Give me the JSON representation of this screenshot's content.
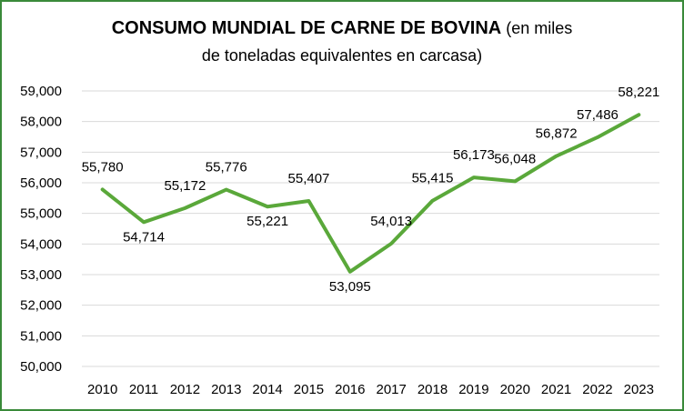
{
  "chart_data": {
    "type": "line",
    "title_bold": "CONSUMO MUNDIAL DE CARNE DE BOVINA",
    "title_rest_line1": "(en miles",
    "title_line2": "de toneladas equivalentes en carcasa)",
    "categories": [
      "2010",
      "2011",
      "2012",
      "2013",
      "2014",
      "2015",
      "2016",
      "2017",
      "2018",
      "2019",
      "2020",
      "2021",
      "2022",
      "2023"
    ],
    "series": [
      {
        "values": [
          55780,
          54714,
          55172,
          55776,
          55221,
          55407,
          53095,
          54013,
          55415,
          56173,
          56048,
          56872,
          57486,
          58221
        ],
        "labels": [
          "55,780",
          "54,714",
          "55,172",
          "55,776",
          "55,221",
          "55,407",
          "53,095",
          "54,013",
          "55,415",
          "56,173",
          "56,048",
          "56,872",
          "57,486",
          "58,221"
        ],
        "color": "#5aa83a"
      }
    ],
    "ylim": [
      50000,
      59000
    ],
    "yticks": [
      "50,000",
      "51,000",
      "52,000",
      "53,000",
      "54,000",
      "55,000",
      "56,000",
      "57,000",
      "58,000",
      "59,000"
    ],
    "ytick_values": [
      50000,
      51000,
      52000,
      53000,
      54000,
      55000,
      56000,
      57000,
      58000,
      59000
    ],
    "grid": true,
    "gridline_color": "#d9d9d9",
    "legend": "none"
  }
}
